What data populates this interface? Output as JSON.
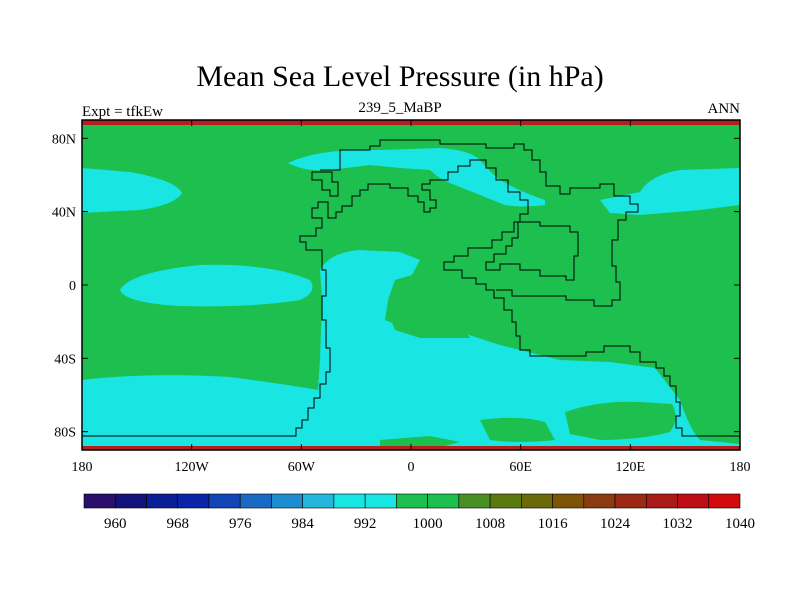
{
  "title": "Mean Sea Level Pressure (in hPa)",
  "experiment": "Expt = tfkEw",
  "subtitle": "239_5_MaBP",
  "season": "ANN",
  "colors": {
    "green": "#1DC04F",
    "cyan": "#19E5E2",
    "land_outline": "#000000",
    "band_red": "#B22020"
  },
  "map": {
    "lon_ticks": [
      "180",
      "120W",
      "60W",
      "0",
      "60E",
      "120E",
      "180"
    ],
    "lat_ticks": [
      "80N",
      "40N",
      "0",
      "40S",
      "80S"
    ]
  },
  "colorbar": {
    "colors": [
      "#2B0F6B",
      "#12137A",
      "#0A1F96",
      "#0A24A8",
      "#1246B8",
      "#1A6AC4",
      "#1C8ED0",
      "#25B6DD",
      "#19E5E2",
      "#19E5E2",
      "#1DC04F",
      "#1DC04F",
      "#4A8F24",
      "#5A7A10",
      "#6A6A0A",
      "#7E5408",
      "#8C3A10",
      "#9A2A14",
      "#AA1A18",
      "#BC0E14",
      "#D00A0A"
    ],
    "labels": [
      "960",
      "968",
      "976",
      "984",
      "992",
      "1000",
      "1008",
      "1016",
      "1024",
      "1032",
      "1040"
    ]
  }
}
